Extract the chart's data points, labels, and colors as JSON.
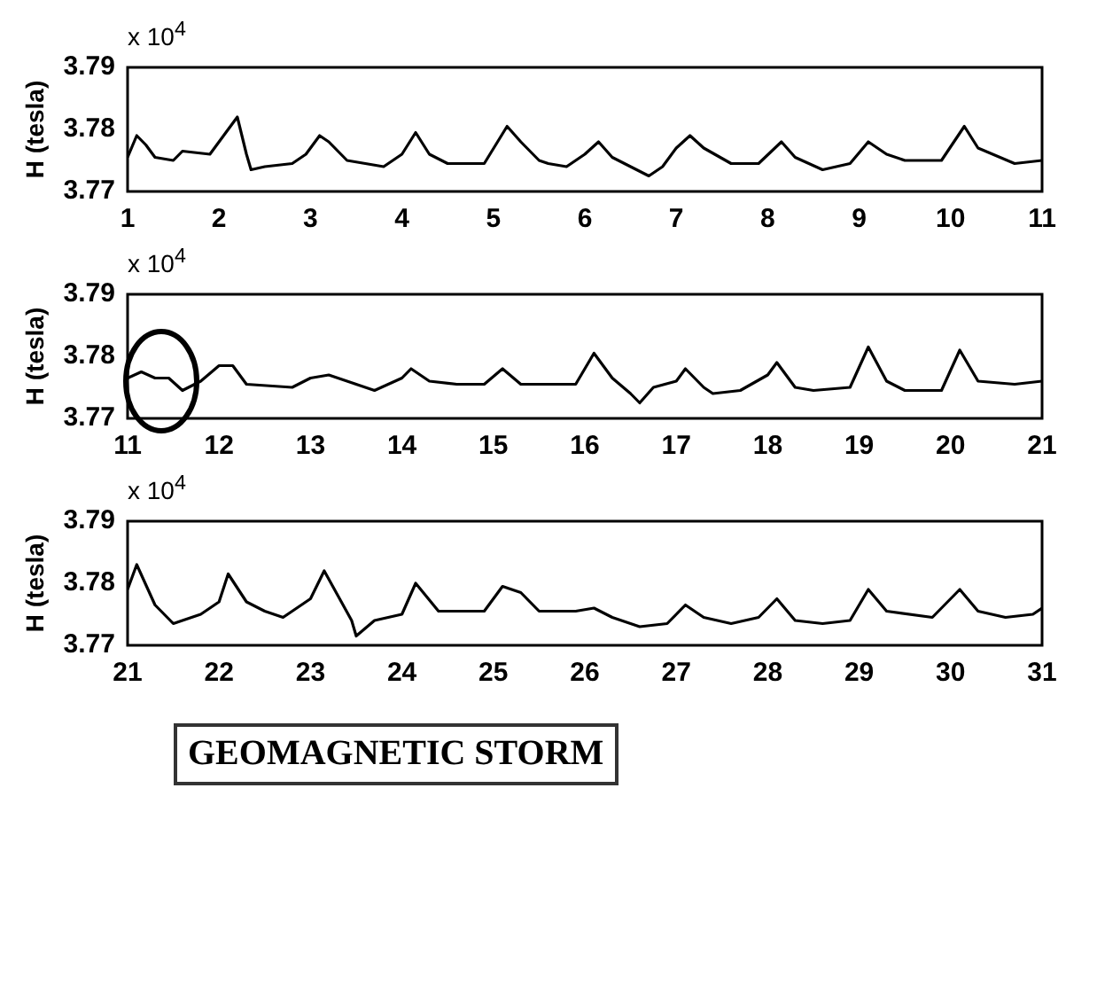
{
  "chart_data": [
    {
      "type": "line",
      "ylabel": "H (tesla)",
      "annotations": [
        "x 10$^{4}$"
      ],
      "xlim": [
        1,
        11
      ],
      "xticks": [
        1,
        2,
        3,
        4,
        5,
        6,
        7,
        8,
        9,
        10,
        11
      ],
      "ylim": [
        3.77,
        3.79
      ],
      "yticks": [
        3.77,
        3.78,
        3.79
      ],
      "grid": false,
      "legend": false,
      "marker": "none",
      "line_style": "solid",
      "series": [
        {
          "color": "#000000",
          "x": [
            1,
            1.1,
            1.2,
            1.3,
            1.5,
            1.6,
            1.9,
            2.05,
            2.2,
            2.3,
            2.35,
            2.5,
            2.8,
            2.95,
            3.1,
            3.2,
            3.4,
            3.6,
            3.8,
            4,
            4.15,
            4.3,
            4.5,
            4.9,
            5.15,
            5.3,
            5.5,
            5.6,
            5.8,
            6,
            6.15,
            6.3,
            6.5,
            6.7,
            6.85,
            7,
            7.15,
            7.3,
            7.6,
            7.9,
            8.15,
            8.3,
            8.6,
            8.9,
            9.1,
            9.3,
            9.5,
            9.9,
            10.15,
            10.3,
            10.7,
            11
          ],
          "values": [
            3.7755,
            3.779,
            3.7775,
            3.7755,
            3.775,
            3.7765,
            3.776,
            3.779,
            3.782,
            3.776,
            3.7735,
            3.774,
            3.7745,
            3.776,
            3.779,
            3.778,
            3.775,
            3.7745,
            3.774,
            3.776,
            3.7795,
            3.776,
            3.7745,
            3.7745,
            3.7805,
            3.778,
            3.775,
            3.7745,
            3.774,
            3.776,
            3.778,
            3.7755,
            3.774,
            3.7725,
            3.774,
            3.777,
            3.779,
            3.777,
            3.7745,
            3.7745,
            3.778,
            3.7755,
            3.7735,
            3.7745,
            3.778,
            3.776,
            3.775,
            3.775,
            3.7805,
            3.777,
            3.7745,
            3.775
          ]
        }
      ]
    },
    {
      "type": "line",
      "ylabel": "H (tesla)",
      "annotations": [
        "x 10$^{4}$"
      ],
      "xlim": [
        11,
        21
      ],
      "xticks": [
        11,
        12,
        13,
        14,
        15,
        16,
        17,
        18,
        19,
        20,
        21
      ],
      "ylim": [
        3.77,
        3.79
      ],
      "yticks": [
        3.77,
        3.78,
        3.79
      ],
      "grid": false,
      "legend": false,
      "marker": "none",
      "line_style": "solid",
      "series": [
        {
          "color": "#000000",
          "x": [
            11,
            11.15,
            11.3,
            11.45,
            11.6,
            11.8,
            12,
            12.15,
            12.3,
            12.8,
            13,
            13.2,
            13.5,
            13.7,
            14,
            14.1,
            14.3,
            14.6,
            14.9,
            15.1,
            15.3,
            15.7,
            15.9,
            16.1,
            16.3,
            16.5,
            16.6,
            16.75,
            17,
            17.1,
            17.3,
            17.4,
            17.7,
            18,
            18.1,
            18.3,
            18.5,
            18.9,
            19.1,
            19.3,
            19.5,
            19.9,
            20.1,
            20.3,
            20.7,
            21
          ],
          "values": [
            3.7765,
            3.7775,
            3.7765,
            3.7765,
            3.7745,
            3.776,
            3.7785,
            3.7785,
            3.7755,
            3.775,
            3.7765,
            3.777,
            3.7755,
            3.7745,
            3.7765,
            3.778,
            3.776,
            3.7755,
            3.7755,
            3.778,
            3.7755,
            3.7755,
            3.7755,
            3.7805,
            3.7765,
            3.774,
            3.7725,
            3.775,
            3.776,
            3.778,
            3.775,
            3.774,
            3.7745,
            3.777,
            3.779,
            3.775,
            3.7745,
            3.775,
            3.7815,
            3.776,
            3.7745,
            3.7745,
            3.781,
            3.776,
            3.7755,
            3.776
          ]
        }
      ]
    },
    {
      "type": "line",
      "ylabel": "H (tesla)",
      "annotations": [
        "x 10$^{4}$",
        "GEOMAGNETIC STORM"
      ],
      "xlim": [
        21,
        31
      ],
      "xticks": [
        21,
        22,
        23,
        24,
        25,
        26,
        27,
        28,
        29,
        30,
        31
      ],
      "ylim": [
        3.77,
        3.79
      ],
      "yticks": [
        3.77,
        3.78,
        3.79
      ],
      "grid": false,
      "legend": false,
      "marker": "none",
      "line_style": "solid",
      "series": [
        {
          "color": "#000000",
          "x": [
            21,
            21.1,
            21.3,
            21.5,
            21.8,
            22,
            22.1,
            22.3,
            22.5,
            22.7,
            23,
            23.15,
            23.3,
            23.45,
            23.5,
            23.7,
            24,
            24.15,
            24.4,
            24.9,
            25.1,
            25.3,
            25.5,
            25.9,
            26.1,
            26.3,
            26.6,
            26.9,
            27.1,
            27.3,
            27.6,
            27.9,
            28.1,
            28.3,
            28.6,
            28.9,
            29.1,
            29.3,
            29.8,
            30.1,
            30.3,
            30.6,
            30.9,
            31
          ],
          "values": [
            3.779,
            3.783,
            3.7765,
            3.7735,
            3.775,
            3.777,
            3.7815,
            3.777,
            3.7755,
            3.7745,
            3.7775,
            3.782,
            3.778,
            3.774,
            3.7715,
            3.774,
            3.775,
            3.78,
            3.7755,
            3.7755,
            3.7795,
            3.7785,
            3.7755,
            3.7755,
            3.776,
            3.7745,
            3.773,
            3.7735,
            3.7765,
            3.7745,
            3.7735,
            3.7745,
            3.7775,
            3.774,
            3.7735,
            3.774,
            3.779,
            3.7755,
            3.7745,
            3.779,
            3.7755,
            3.7745,
            3.775,
            3.776
          ]
        }
      ]
    }
  ]
}
